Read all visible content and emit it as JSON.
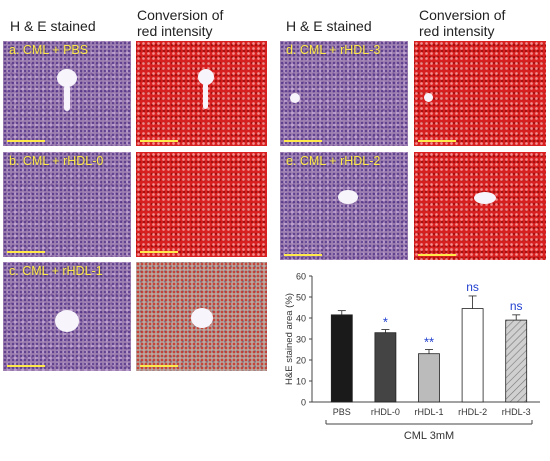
{
  "headers": {
    "he_left": "H & E stained",
    "conv_left_line1": "Conversion of",
    "conv_left_line2": "red intensity",
    "he_right": "H & E stained",
    "conv_right_line1": "Conversion of",
    "conv_right_line2": "red intensity"
  },
  "panels": {
    "a": "a. CML + PBS",
    "b": "b. CML + rHDL-0",
    "c": "c. CML + rHDL-1",
    "d": "d. CML + rHDL-3",
    "e": "e. CML + rHDL-2"
  },
  "colors": {
    "accent_label": "#ffe94a",
    "significance": "#1f3fcf"
  },
  "chart_data": {
    "type": "bar",
    "title": "",
    "xlabel": "CML 3mM",
    "ylabel": "H&E stained area (%)",
    "ylim": [
      0,
      60
    ],
    "yticks": [
      0,
      10,
      20,
      30,
      40,
      50,
      60
    ],
    "categories": [
      "PBS",
      "rHDL-0",
      "rHDL-1",
      "rHDL-2",
      "rHDL-3"
    ],
    "values": [
      41.5,
      33,
      23,
      44.5,
      39
    ],
    "errors": [
      2,
      1.5,
      2,
      6,
      2.5
    ],
    "significance": [
      "",
      "*",
      "**",
      "ns",
      "ns"
    ],
    "bar_colors": [
      "#1a1a1a",
      "#444444",
      "#bbbbbb",
      "#ffffff",
      "#cccccc"
    ],
    "bar_patterns": [
      "solid",
      "solid",
      "solid",
      "solid",
      "hatched"
    ]
  }
}
